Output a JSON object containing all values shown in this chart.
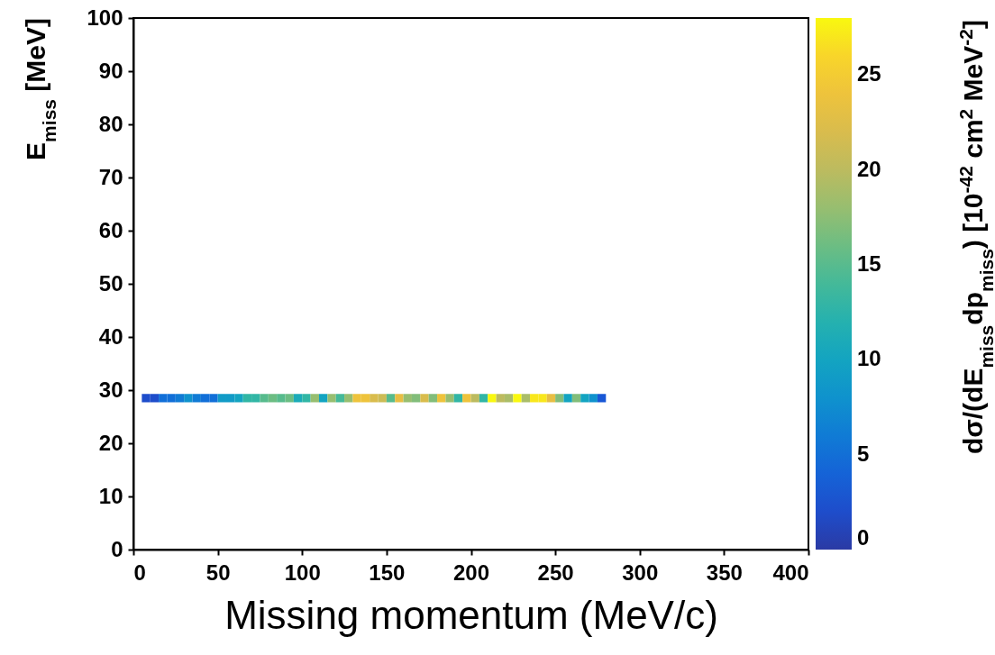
{
  "chart_data": {
    "type": "scatter",
    "xlabel": "Missing momentum (MeV/c)",
    "ylabel": "E$_{miss}$ [MeV]",
    "clabel": "dσ/(dE$_{miss}$dp$_{miss}$) [10$^{-42}$ cm$^{2}$ MeV$^{-2}$]",
    "marker": "square",
    "x": [
      7.5,
      12.5,
      17.5,
      22.5,
      27.5,
      32.5,
      37.5,
      42.5,
      47.5,
      52.5,
      57.5,
      62.5,
      67.5,
      72.5,
      77.5,
      82.5,
      87.5,
      92.5,
      97.5,
      102.5,
      107.5,
      112.5,
      117.5,
      122.5,
      127.5,
      132.5,
      137.5,
      142.5,
      147.5,
      152.5,
      157.5,
      162.5,
      167.5,
      172.5,
      177.5,
      182.5,
      187.5,
      192.5,
      197.5,
      202.5,
      207.5,
      212.5,
      217.5,
      222.5,
      227.5,
      232.5,
      237.5,
      242.5,
      247.5,
      252.5,
      257.5,
      262.5,
      267.5,
      272.5,
      277.5
    ],
    "values": [
      28.5,
      28.5,
      28.5,
      28.5,
      28.5,
      28.5,
      28.5,
      28.5,
      28.5,
      28.5,
      28.5,
      28.5,
      28.5,
      28.5,
      28.5,
      28.5,
      28.5,
      28.5,
      28.5,
      28.5,
      28.5,
      28.5,
      28.5,
      28.5,
      28.5,
      28.5,
      28.5,
      28.5,
      28.5,
      28.5,
      28.5,
      28.5,
      28.5,
      28.5,
      28.5,
      28.5,
      28.5,
      28.5,
      28.5,
      28.5,
      28.5,
      28.5,
      28.5,
      28.5,
      28.5,
      28.5,
      28.5,
      28.5,
      28.5,
      28.5,
      28.5,
      28.5,
      28.5,
      28.5,
      28.5
    ],
    "cvalues": [
      2,
      2,
      5,
      5,
      6,
      8,
      6,
      5,
      5,
      9,
      9,
      10,
      13,
      13,
      15,
      16,
      15,
      16,
      11,
      13,
      18,
      10,
      18,
      14,
      18,
      24,
      24,
      22,
      21,
      15,
      23,
      18,
      17,
      22,
      17,
      24,
      18,
      13,
      24,
      20,
      13,
      28,
      20,
      19,
      28,
      19,
      27,
      27,
      23,
      17,
      10,
      17,
      10,
      8,
      3
    ],
    "xlim": [
      0,
      400
    ],
    "xticks": [
      0,
      50,
      100,
      150,
      200,
      250,
      300,
      350,
      400
    ],
    "ylim": [
      0,
      100
    ],
    "yticks": [
      0,
      10,
      20,
      30,
      40,
      50,
      60,
      70,
      80,
      90,
      100
    ],
    "clim": [
      0,
      28
    ],
    "cticks": [
      0,
      5,
      10,
      15,
      20,
      25
    ]
  }
}
